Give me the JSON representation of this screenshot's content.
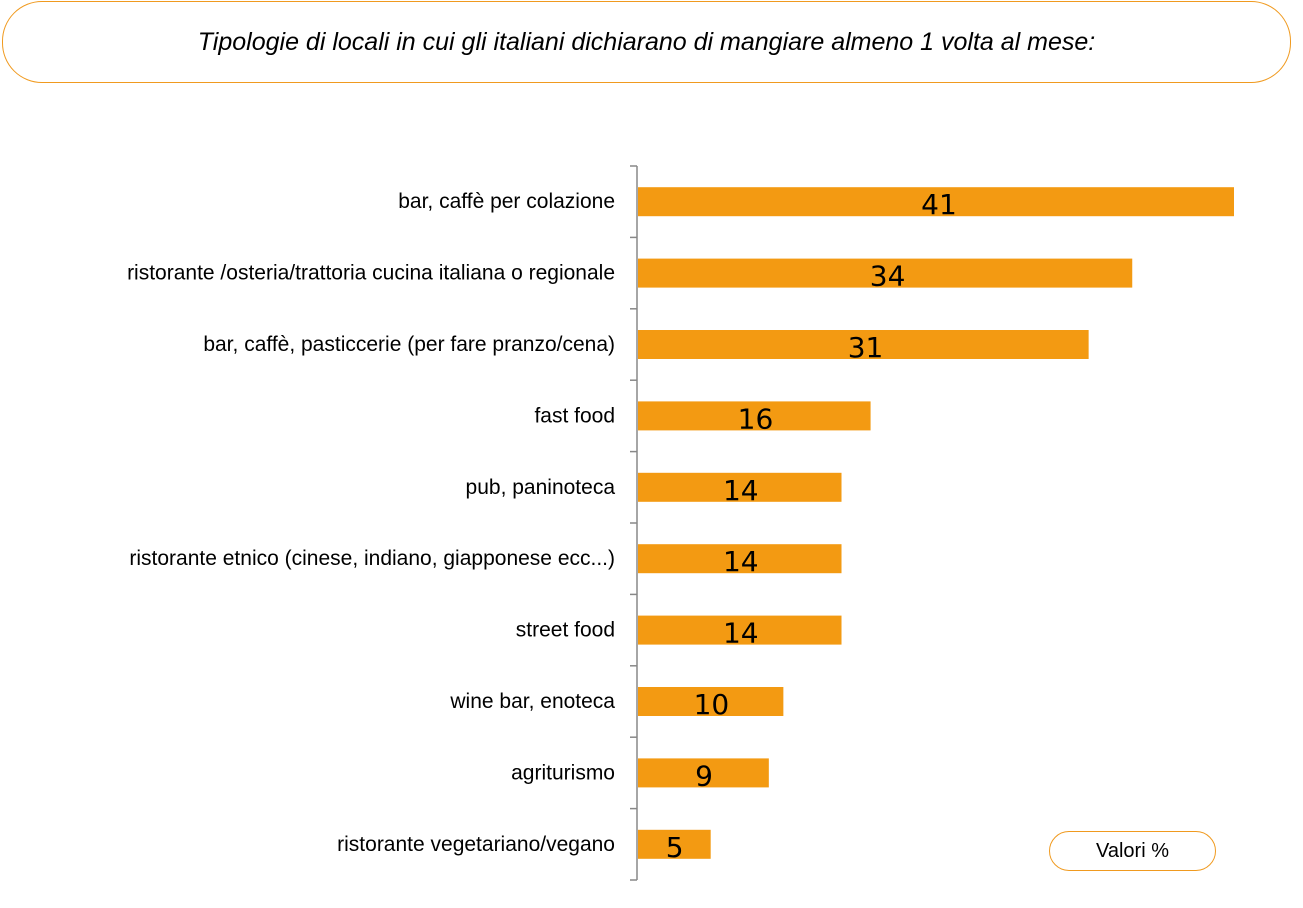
{
  "header": {
    "title": "Tipologie di locali in cui gli italiani dichiarano di mangiare almeno 1 volta al mese:"
  },
  "legend": {
    "label": "Valori %"
  },
  "colors": {
    "bar": "#f39a12",
    "accent_border": "#f09a1f",
    "axis": "#888888"
  },
  "chart_data": {
    "type": "bar",
    "orientation": "horizontal",
    "categories": [
      "bar, caffè per colazione",
      "ristorante /osteria/trattoria cucina italiana o regionale",
      "bar, caffè, pasticcerie (per fare pranzo/cena)",
      "fast food",
      "pub, paninoteca",
      "ristorante etnico (cinese, indiano, giapponese ecc...)",
      "street food",
      "wine bar, enoteca",
      "agriturismo",
      "ristorante vegetariano/vegano"
    ],
    "values": [
      41,
      34,
      31,
      16,
      14,
      14,
      14,
      10,
      9,
      5
    ],
    "data_labels": [
      "41",
      "34",
      "31",
      "16",
      "14",
      "14",
      "14",
      "10",
      "9",
      "5"
    ],
    "xlim": [
      0,
      41
    ],
    "grid": false
  }
}
